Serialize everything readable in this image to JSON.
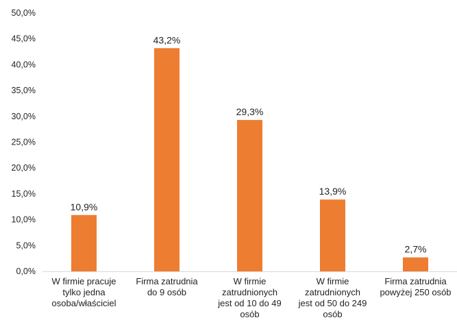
{
  "chart_data": {
    "type": "bar",
    "title": "",
    "xlabel": "",
    "ylabel": "",
    "ylim": [
      0,
      50
    ],
    "yticks": [
      "0,0%",
      "5,0%",
      "10,0%",
      "15,0%",
      "20,0%",
      "25,0%",
      "30,0%",
      "35,0%",
      "40,0%",
      "45,0%",
      "50,0%"
    ],
    "ytick_values": [
      0,
      5,
      10,
      15,
      20,
      25,
      30,
      35,
      40,
      45,
      50
    ],
    "categories": [
      "W firmie pracuje tylko jedna osoba/właściciel",
      "Firma zatrudnia do 9 osób",
      "W firmie zatrudnionych jest od 10 do 49 osób",
      "W firmie zatrudnionych jest od 50 do 249 osób",
      "Firma zatrudnia powyżej 250 osób"
    ],
    "category_lines": [
      [
        "W firmie pracuje",
        "tylko jedna",
        "osoba/właściciel"
      ],
      [
        "Firma zatrudnia",
        "do 9 osób"
      ],
      [
        "W firmie",
        "zatrudnionych",
        "jest od 10 do 49",
        "osób"
      ],
      [
        "W firmie",
        "zatrudnionych",
        "jest od 50 do 249",
        "osób"
      ],
      [
        "Firma zatrudnia",
        "powyżej 250 osób"
      ]
    ],
    "values": [
      10.9,
      43.2,
      29.3,
      13.9,
      2.7
    ],
    "value_labels": [
      "10,9%",
      "43,2%",
      "29,3%",
      "13,9%",
      "2,7%"
    ],
    "grid": false,
    "legend": "none",
    "bar_color": "#ED7D31"
  }
}
